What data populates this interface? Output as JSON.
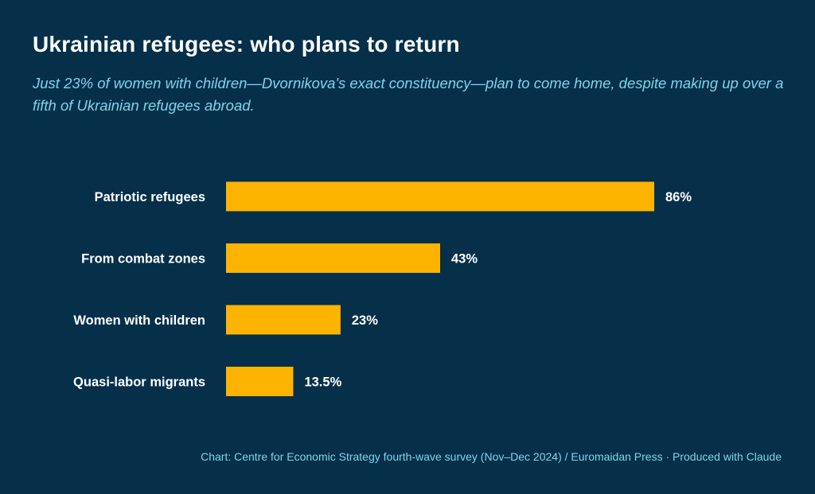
{
  "chart_data": {
    "type": "bar",
    "orientation": "horizontal",
    "title": "Ukrainian refugees: who plans to return",
    "subtitle": "Just 23% of women with children—Dvornikova's exact constituency—plan to come home, despite making up over a fifth of Ukrainian refugees abroad.",
    "categories": [
      "Patriotic refugees",
      "From combat zones",
      "Women with children",
      "Quasi-labor migrants"
    ],
    "values": [
      86,
      43,
      23,
      13.5
    ],
    "value_labels": [
      "86%",
      "43%",
      "23%",
      "13.5%"
    ],
    "unit": "%",
    "xlim": [
      0,
      86
    ],
    "grid": false,
    "legend": "none",
    "bar_color": "#fdb400",
    "source": "Chart: Centre for Economic Strategy fourth-wave survey (Nov–Dec 2024) / Euromaidan Press · Produced with Claude"
  },
  "colors": {
    "background": "#06304a",
    "title": "#ffffff",
    "subtitle": "#7fd3ea",
    "category_label": "#ffffff",
    "value_label": "#ffffff"
  }
}
